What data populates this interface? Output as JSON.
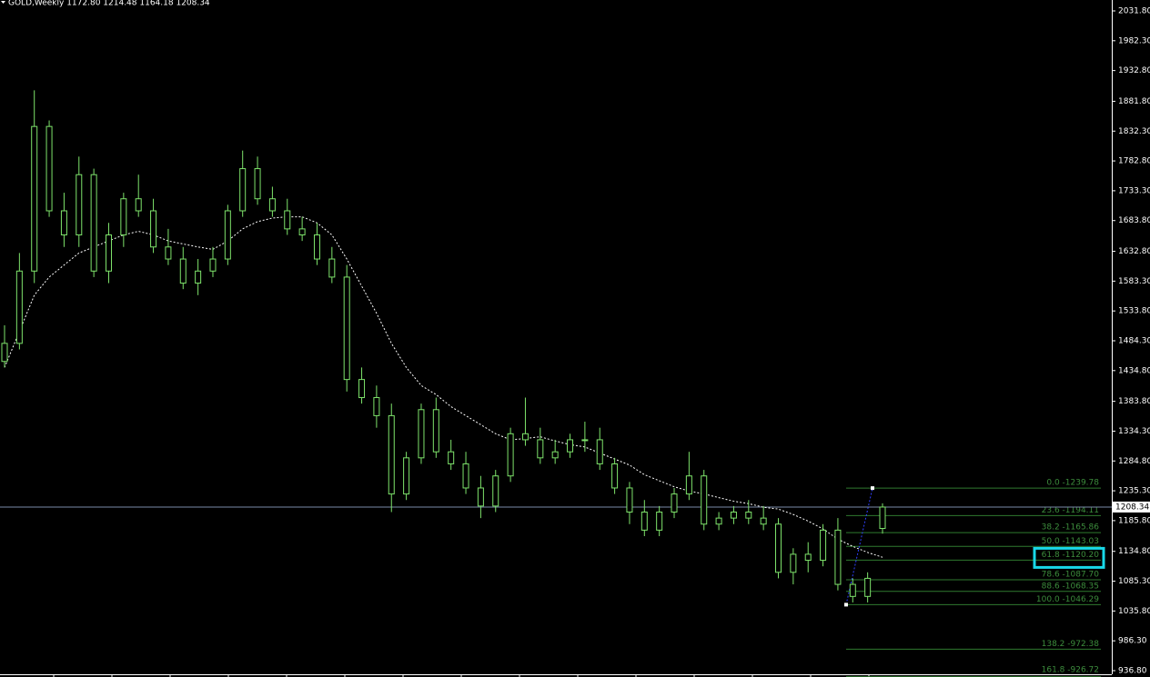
{
  "chart_data": {
    "type": "candlestick",
    "title": "GOLD,Weekly  1172.80 1214.48 1164.18 1208.34",
    "color": "#7ee36b",
    "open": [
      1450,
      1480,
      1600,
      1840,
      1700,
      1660,
      1760,
      1600,
      1660,
      1720,
      1700,
      1640,
      1620,
      1580,
      1600,
      1620,
      1700,
      1770,
      1720,
      1700,
      1670,
      1660,
      1620,
      1590,
      1420,
      1390,
      1360,
      1230,
      1290,
      1370,
      1300,
      1280,
      1240,
      1210,
      1260,
      1330,
      1320,
      1290,
      1300,
      1320,
      1320,
      1280,
      1240,
      1200,
      1170,
      1200,
      1230,
      1260,
      1180,
      1190,
      1200,
      1190,
      1180,
      1100,
      1130,
      1120,
      1170,
      1080,
      1060,
      1172.8
    ],
    "high": [
      1510,
      1630,
      1900,
      1850,
      1730,
      1790,
      1770,
      1680,
      1730,
      1760,
      1720,
      1670,
      1640,
      1620,
      1640,
      1710,
      1800,
      1790,
      1740,
      1720,
      1690,
      1680,
      1640,
      1610,
      1440,
      1410,
      1380,
      1300,
      1380,
      1390,
      1320,
      1300,
      1260,
      1270,
      1340,
      1390,
      1340,
      1320,
      1330,
      1350,
      1340,
      1290,
      1250,
      1220,
      1210,
      1240,
      1300,
      1270,
      1200,
      1210,
      1220,
      1210,
      1190,
      1140,
      1150,
      1180,
      1190,
      1090,
      1100,
      1214.48
    ],
    "low": [
      1440,
      1470,
      1580,
      1690,
      1640,
      1640,
      1590,
      1580,
      1640,
      1690,
      1630,
      1610,
      1570,
      1560,
      1590,
      1610,
      1690,
      1710,
      1690,
      1660,
      1650,
      1610,
      1580,
      1400,
      1380,
      1340,
      1200,
      1220,
      1280,
      1290,
      1270,
      1230,
      1190,
      1200,
      1250,
      1310,
      1280,
      1280,
      1290,
      1300,
      1270,
      1230,
      1180,
      1160,
      1160,
      1190,
      1220,
      1170,
      1170,
      1180,
      1180,
      1170,
      1090,
      1080,
      1100,
      1110,
      1070,
      1050,
      1050,
      1164.18
    ],
    "close": [
      1480,
      1600,
      1840,
      1700,
      1660,
      1760,
      1600,
      1660,
      1720,
      1700,
      1640,
      1620,
      1580,
      1600,
      1620,
      1700,
      1770,
      1720,
      1700,
      1670,
      1660,
      1620,
      1590,
      1420,
      1390,
      1360,
      1230,
      1290,
      1370,
      1300,
      1280,
      1240,
      1210,
      1260,
      1330,
      1320,
      1290,
      1300,
      1320,
      1320,
      1280,
      1240,
      1200,
      1170,
      1200,
      1230,
      1260,
      1180,
      1190,
      1200,
      1190,
      1180,
      1100,
      1130,
      1120,
      1170,
      1080,
      1060,
      1090,
      1208.34
    ],
    "ma": {
      "color": "#ffffff",
      "values": [
        1440,
        1500,
        1560,
        1590,
        1610,
        1630,
        1640,
        1650,
        1660,
        1666,
        1660,
        1650,
        1645,
        1640,
        1636,
        1650,
        1670,
        1682,
        1688,
        1690,
        1690,
        1680,
        1660,
        1620,
        1575,
        1530,
        1480,
        1440,
        1410,
        1395,
        1375,
        1360,
        1345,
        1330,
        1320,
        1322,
        1325,
        1318,
        1312,
        1308,
        1298,
        1288,
        1278,
        1262,
        1252,
        1242,
        1235,
        1230,
        1224,
        1218,
        1214,
        1208,
        1205,
        1196,
        1185,
        1172,
        1155,
        1143,
        1133,
        1125
      ]
    },
    "ylim": [
      936.8,
      2031.8
    ],
    "yticks": [
      {
        "value": 2031.8,
        "label": "2031.80"
      },
      {
        "value": 1982.3,
        "label": "1982.30"
      },
      {
        "value": 1932.8,
        "label": "1932.80"
      },
      {
        "value": 1881.8,
        "label": "1881.80"
      },
      {
        "value": 1832.3,
        "label": "1832.30"
      },
      {
        "value": 1782.8,
        "label": "1782.80"
      },
      {
        "value": 1733.3,
        "label": "1733.30"
      },
      {
        "value": 1683.8,
        "label": "1683.80"
      },
      {
        "value": 1632.8,
        "label": "1632.80"
      },
      {
        "value": 1583.3,
        "label": "1583.30"
      },
      {
        "value": 1533.8,
        "label": "1533.80"
      },
      {
        "value": 1484.3,
        "label": "1484.30"
      },
      {
        "value": 1434.8,
        "label": "1434.80"
      },
      {
        "value": 1383.8,
        "label": "1383.80"
      },
      {
        "value": 1334.3,
        "label": "1334.30"
      },
      {
        "value": 1284.8,
        "label": "1284.80"
      },
      {
        "value": 1235.3,
        "label": "1235.30"
      },
      {
        "value": 1185.8,
        "label": "1185.80"
      },
      {
        "value": 1134.8,
        "label": "1134.80"
      },
      {
        "value": 1085.3,
        "label": "1085.30"
      },
      {
        "value": 1035.8,
        "label": "1035.80"
      },
      {
        "value": 986.3,
        "label": "986.30"
      },
      {
        "value": 936.8,
        "label": "936.80"
      }
    ],
    "last_price": {
      "value": 1208.34,
      "label": "1208.34"
    },
    "fib_levels": [
      {
        "value": 1239.78,
        "label": "0.0 -1239.78"
      },
      {
        "value": 1194.11,
        "label": "23.6 -1194.11"
      },
      {
        "value": 1165.86,
        "label": "38.2 -1165.86"
      },
      {
        "value": 1143.03,
        "label": "50.0 -1143.03"
      },
      {
        "value": 1120.2,
        "label": "61.8 -1120.20"
      },
      {
        "value": 1087.7,
        "label": "78.6 -1087.70"
      },
      {
        "value": 1068.35,
        "label": "88.6 -1068.35"
      },
      {
        "value": 1046.29,
        "label": "100.0 -1046.29"
      },
      {
        "value": 972.38,
        "label": "138.2 -972.38"
      },
      {
        "value": 926.72,
        "label": "161.8 -926.72"
      }
    ],
    "highlight_level": 4
  }
}
